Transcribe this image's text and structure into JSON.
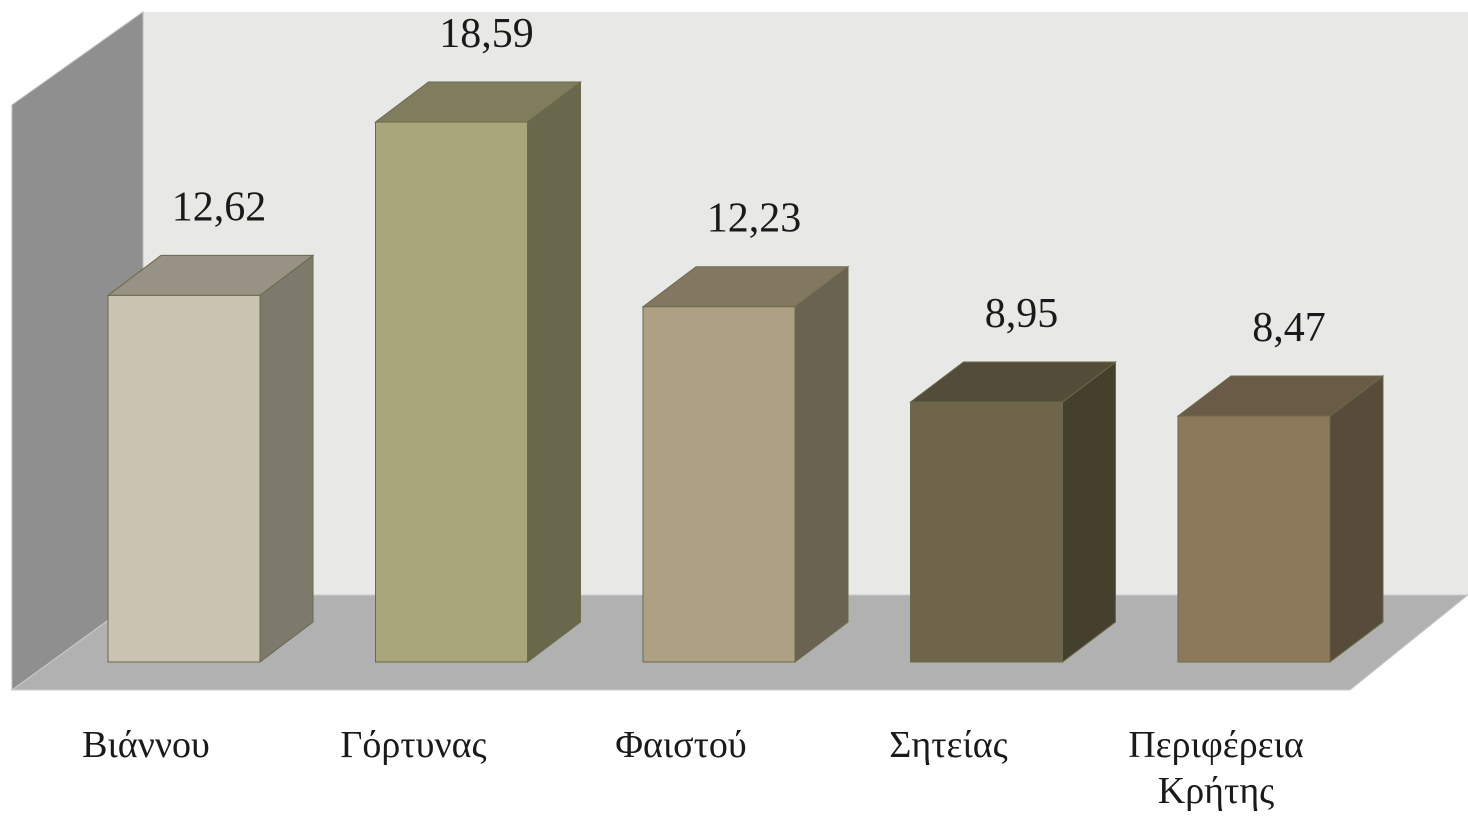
{
  "chart_data": {
    "type": "bar3d",
    "categories": [
      "Βιάννου",
      "Γόρτυνας",
      "Φαιστού",
      "Σητείας",
      "Περιφέρεια Κρήτης"
    ],
    "values": [
      12.62,
      18.59,
      12.23,
      8.95,
      8.47
    ],
    "value_labels": [
      "12,62",
      "18,59",
      "12,23",
      "8,95",
      "8,47"
    ],
    "colors": [
      "#c9c3af",
      "#aaa67b",
      "#ada083",
      "#6f654a",
      "#8c795c"
    ]
  }
}
